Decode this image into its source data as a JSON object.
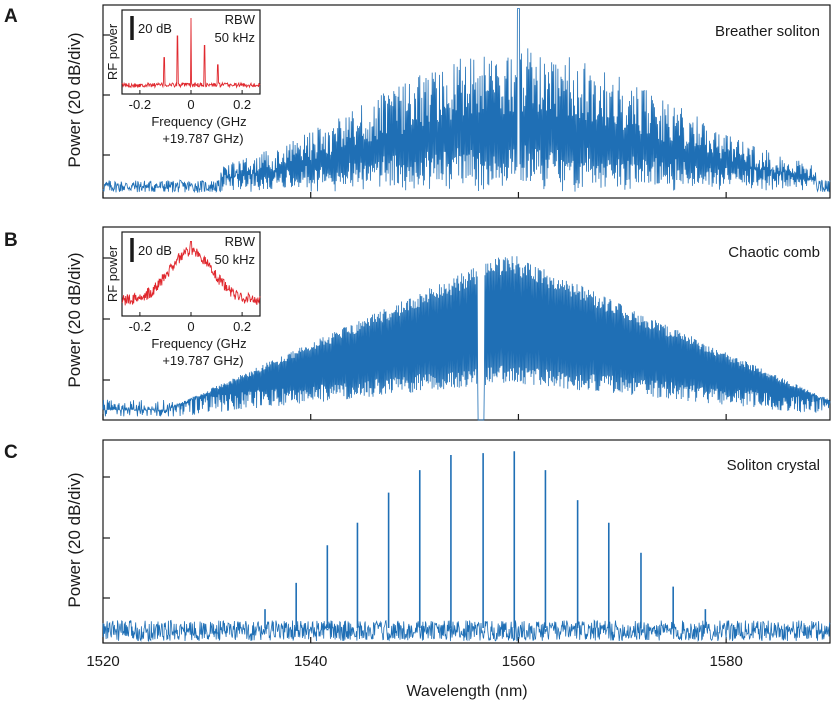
{
  "colors": {
    "spectrum": "#1f6fb5",
    "inset": "#e0282e",
    "axis": "#1a1a1a"
  },
  "chart_data": [
    {
      "type": "line",
      "panel": "A",
      "title": "Breather soliton",
      "ylabel": "Power (20 dB/div)",
      "xlim": [
        1520,
        1590
      ],
      "ylim": [
        0,
        5.4
      ],
      "envelope": {
        "kind": "comb-broad",
        "center": 1560,
        "top": 4.2,
        "width": 22,
        "peak": 5.3,
        "floor": 0.3
      },
      "series": [
        {
          "values": []
        }
      ],
      "inset": {
        "ylabel": "RF power",
        "xlabel_line1": "Frequency (GHz",
        "xlabel_line2": "+19.787 GHz)",
        "scale_label": "20 dB",
        "rbw_label": "RBW",
        "rbw_value": "50 kHz",
        "xticks": [
          "-0.2",
          "0",
          "0.2"
        ],
        "xlim": [
          -0.27,
          0.27
        ],
        "peaks": [
          {
            "x": -0.105,
            "level": 0.45
          },
          {
            "x": -0.053,
            "level": 0.75
          },
          {
            "x": 0.0,
            "level": 1.0
          },
          {
            "x": 0.053,
            "level": 0.62
          },
          {
            "x": 0.105,
            "level": 0.35
          }
        ]
      }
    },
    {
      "type": "line",
      "panel": "B",
      "title": "Chaotic comb",
      "ylabel": "Power (20 dB/div)",
      "xlim": [
        1520,
        1590
      ],
      "ylim": [
        0,
        5.4
      ],
      "envelope": {
        "kind": "triangle",
        "center": 1559,
        "top": 4.7,
        "halfwidth": 33,
        "floor": 0.3
      },
      "series": [
        {
          "values": []
        }
      ],
      "inset": {
        "ylabel": "RF power",
        "xlabel_line1": "Frequency (GHz",
        "xlabel_line2": "+19.787 GHz)",
        "scale_label": "20 dB",
        "rbw_label": "RBW",
        "rbw_value": "50 kHz",
        "xticks": [
          "-0.2",
          "0",
          "0.2"
        ],
        "xlim": [
          -0.27,
          0.27
        ],
        "shape": "broad"
      }
    },
    {
      "type": "line",
      "panel": "C",
      "title": "Soliton crystal",
      "ylabel": "Power (20 dB/div)",
      "xlabel": "Wavelength (nm)",
      "xlim": [
        1520,
        1590
      ],
      "ylim": [
        0,
        5.4
      ],
      "xticks": [
        1520,
        1540,
        1560,
        1580
      ],
      "floor": 0.4,
      "lines": [
        {
          "x": 1535.6,
          "y": 0.9
        },
        {
          "x": 1538.6,
          "y": 1.6
        },
        {
          "x": 1541.6,
          "y": 2.6
        },
        {
          "x": 1544.5,
          "y": 3.2
        },
        {
          "x": 1547.5,
          "y": 4.0
        },
        {
          "x": 1550.5,
          "y": 4.6
        },
        {
          "x": 1553.5,
          "y": 5.0
        },
        {
          "x": 1556.6,
          "y": 5.05
        },
        {
          "x": 1559.6,
          "y": 5.1
        },
        {
          "x": 1562.6,
          "y": 4.6
        },
        {
          "x": 1565.7,
          "y": 3.8
        },
        {
          "x": 1568.7,
          "y": 3.2
        },
        {
          "x": 1571.8,
          "y": 2.4
        },
        {
          "x": 1574.9,
          "y": 1.5
        },
        {
          "x": 1578.0,
          "y": 0.9
        }
      ]
    }
  ],
  "panels": [
    {
      "letter": "A",
      "title": "Breather soliton"
    },
    {
      "letter": "B",
      "title": "Chaotic comb"
    },
    {
      "letter": "C",
      "title": "Soliton crystal"
    }
  ],
  "axis": {
    "xlabel": "Wavelength (nm)",
    "ylabel": "Power (20 dB/div)",
    "xticks": [
      "1520",
      "1540",
      "1560",
      "1580"
    ]
  }
}
